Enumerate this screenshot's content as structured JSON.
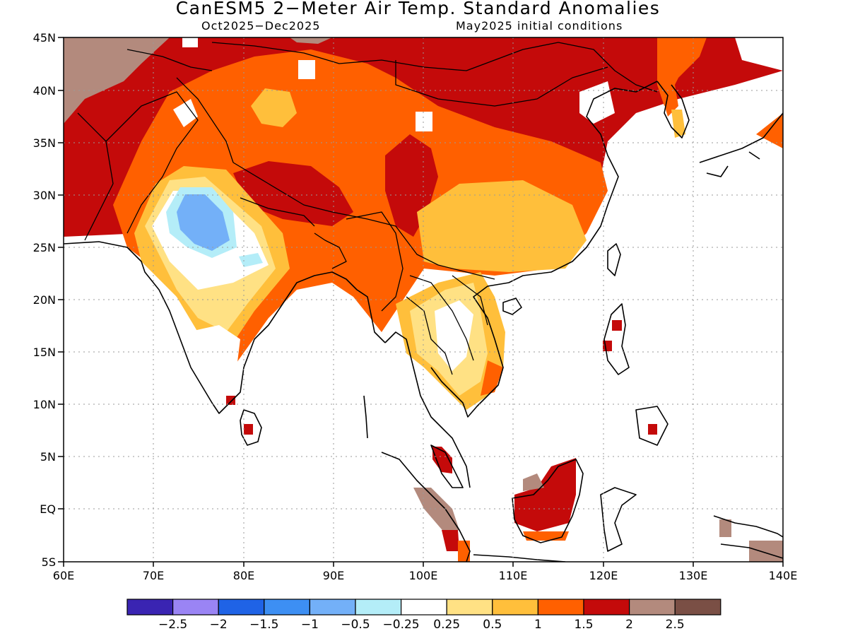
{
  "title": "CanESM5 2−Meter Air Temp. Standard Anomalies",
  "subtitle_left": "Oct2025−Dec2025",
  "subtitle_right": "May2025 initial conditions",
  "lat_labels": [
    "45N",
    "40N",
    "35N",
    "30N",
    "25N",
    "20N",
    "15N",
    "10N",
    "5N",
    "EQ",
    "5S"
  ],
  "lon_labels": [
    "60E",
    "70E",
    "80E",
    "90E",
    "100E",
    "110E",
    "120E",
    "130E",
    "140E"
  ],
  "colorbar": {
    "colors": [
      "#3a24b2",
      "#9a84f4",
      "#1f63e6",
      "#3d8ff3",
      "#73b0f8",
      "#b4edf8",
      "#ffffff",
      "#ffe184",
      "#ffbf3b",
      "#ff6000",
      "#c40a0a",
      "#b38a7d",
      "#7a4f45"
    ],
    "labels": [
      "−2.5",
      "−2",
      "−1.5",
      "−1",
      "−0.5",
      "−0.25",
      "0.25",
      "0.5",
      "1",
      "1.5",
      "2",
      "2.5"
    ]
  }
}
